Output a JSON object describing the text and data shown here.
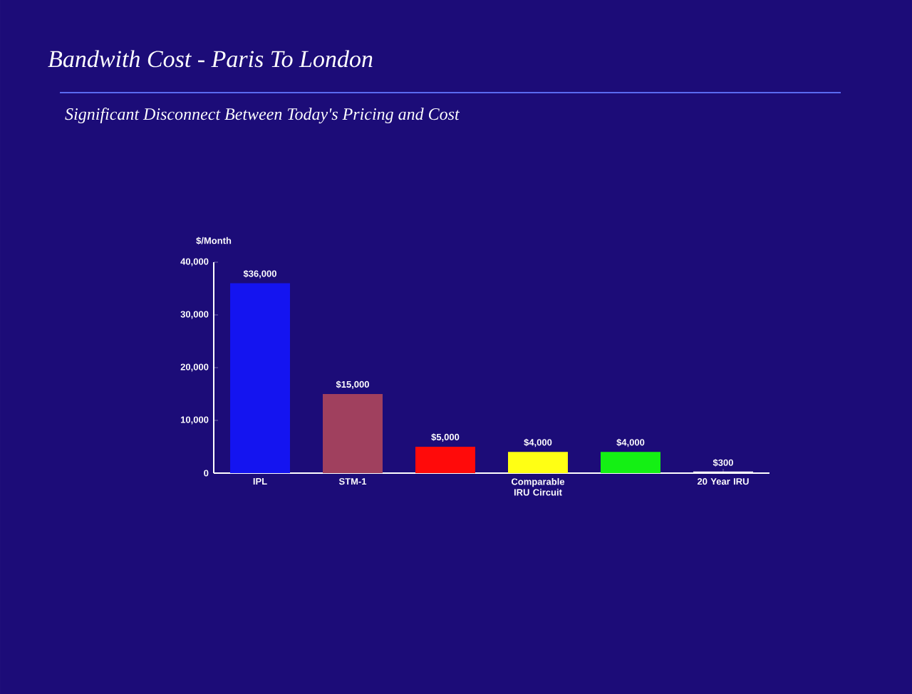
{
  "chart_data": {
    "type": "bar",
    "title": "Bandwith Cost - Paris To London",
    "subtitle": "Significant Disconnect Between Today's Pricing and Cost",
    "ylabel": "$/Month",
    "categories": [
      "IPL",
      "STM-1",
      null,
      "Comparable IRU Circuit",
      null,
      "20 Year IRU"
    ],
    "values": [
      36000,
      15000,
      5000,
      4000,
      4000,
      300
    ],
    "value_labels": [
      "$36,000",
      "$15,000",
      "$5,000",
      "$4,000",
      "$4,000",
      "$300"
    ],
    "colors": [
      "#1414f0",
      "#a0405e",
      "#ff0a0a",
      "#ffff14",
      "#14f014",
      "#ffffff"
    ],
    "ylim": [
      0,
      40000
    ],
    "yticks": [
      0,
      {
        "value": 10000,
        "label": "10,000"
      },
      {
        "value": 20000,
        "label": "20,000"
      },
      {
        "value": 30000,
        "label": "30,000"
      },
      {
        "value": 40000,
        "label": "40,000"
      }
    ],
    "orientation": "vertical"
  }
}
